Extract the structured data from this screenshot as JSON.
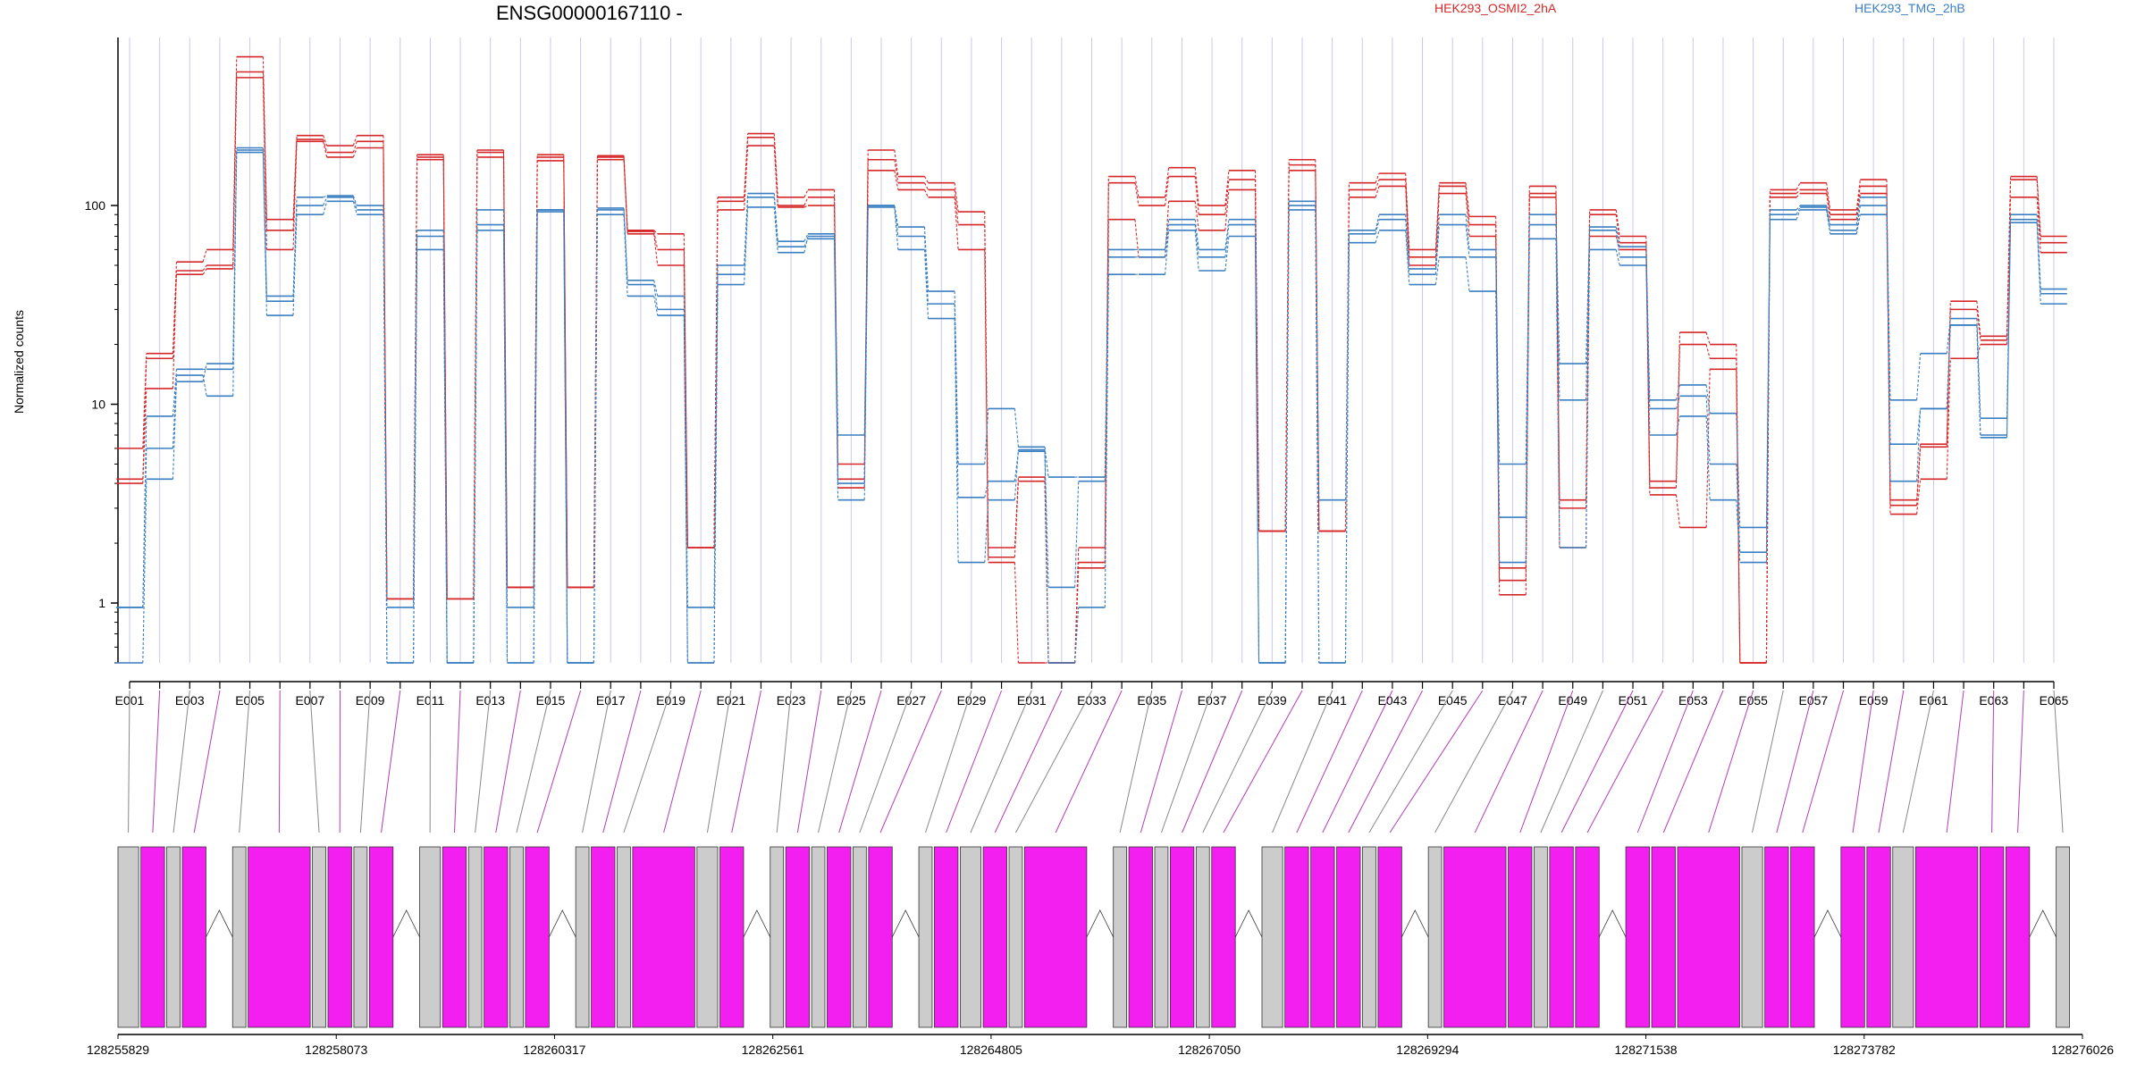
{
  "chart_data": {
    "type": "line",
    "title": "ENSG00000167110 -",
    "ylabel": "Normalized counts",
    "yscale": "log",
    "ylim": [
      0.5,
      700
    ],
    "yticks": [
      "1",
      "10",
      "100"
    ],
    "legend": [
      {
        "label": "HEK293_OSMI2_2hA",
        "color": "#d62728"
      },
      {
        "label": "HEK293_TMG_2hB",
        "color": "#3a7fc1"
      }
    ],
    "colors": {
      "red": "#d62728",
      "blue": "#3a7fc1",
      "grid": "#c8c8f0",
      "exon_gray": "#cccccc",
      "exon_magenta": "#f21ff0",
      "link_gray": "#888888",
      "link_magenta": "#b43cb4"
    },
    "exons": [
      "E001",
      "E002",
      "E003",
      "E004",
      "E005",
      "E006",
      "E007",
      "E008",
      "E009",
      "E010",
      "E011",
      "E012",
      "E013",
      "E014",
      "E015",
      "E016",
      "E017",
      "E018",
      "E019",
      "E020",
      "E021",
      "E022",
      "E023",
      "E024",
      "E025",
      "E026",
      "E027",
      "E028",
      "E029",
      "E030",
      "E031",
      "E032",
      "E033",
      "E034",
      "E035",
      "E036",
      "E037",
      "E038",
      "E039",
      "E040",
      "E041",
      "E042",
      "E043",
      "E044",
      "E045",
      "E046",
      "E047",
      "E048",
      "E049",
      "E050",
      "E051",
      "E052",
      "E053",
      "E054",
      "E055",
      "E056",
      "E057",
      "E058",
      "E059",
      "E060",
      "E061",
      "E062",
      "E063",
      "E064",
      "E065"
    ],
    "exon_labels_shown": [
      "E001",
      "E003",
      "E005",
      "E007",
      "E009",
      "E011",
      "E013",
      "E015",
      "E017",
      "E019",
      "E021",
      "E023",
      "E025",
      "E027",
      "E029",
      "E031",
      "E033",
      "E035",
      "E037",
      "E039",
      "E041",
      "E043",
      "E045",
      "E047",
      "E049",
      "E051",
      "E053",
      "E055",
      "E057",
      "E059",
      "E061",
      "E063",
      "E065"
    ],
    "series": [
      {
        "group": "HEK293_OSMI2_2hA",
        "values": [
          6,
          18,
          52,
          60,
          560,
          85,
          225,
          200,
          225,
          1.05,
          180,
          1.05,
          190,
          1.2,
          180,
          1.2,
          178,
          75,
          72,
          1.9,
          110,
          230,
          110,
          120,
          5,
          190,
          140,
          130,
          93,
          1.9,
          4.3,
          0.5,
          1.9,
          140,
          110,
          155,
          100,
          150,
          2.3,
          170,
          2.3,
          130,
          145,
          60,
          130,
          88,
          1.5,
          125,
          3.3,
          95,
          70,
          4.1,
          23,
          20,
          0.5,
          120,
          130,
          95,
          135,
          3.3,
          6.3,
          33,
          22,
          140,
          70
        ]
      },
      {
        "group": "HEK293_OSMI2_2hA",
        "values": [
          4,
          12,
          47,
          50,
          470,
          75,
          215,
          185,
          210,
          1.05,
          175,
          1.05,
          185,
          1.2,
          175,
          1.2,
          175,
          74,
          60,
          1.9,
          105,
          220,
          100,
          110,
          4.2,
          170,
          130,
          120,
          80,
          1.7,
          4.1,
          0.5,
          1.6,
          130,
          100,
          140,
          90,
          135,
          2.3,
          160,
          2.3,
          120,
          135,
          55,
          125,
          80,
          1.3,
          115,
          3,
          90,
          65,
          3.8,
          20,
          17,
          0.5,
          115,
          120,
          90,
          125,
          3.1,
          6.1,
          30,
          21,
          135,
          65
        ]
      },
      {
        "group": "HEK293_OSMI2_2hA",
        "values": [
          4.2,
          17,
          45,
          48,
          440,
          60,
          210,
          175,
          195,
          1.05,
          170,
          1.05,
          175,
          1.2,
          168,
          1.2,
          170,
          72,
          50,
          1.9,
          95,
          200,
          98,
          100,
          3.8,
          150,
          120,
          110,
          60,
          1.6,
          0.5,
          0.5,
          1.5,
          85,
          55,
          105,
          75,
          120,
          2.3,
          150,
          2.3,
          110,
          125,
          50,
          115,
          70,
          1.1,
          110,
          1.9,
          70,
          60,
          3.5,
          2.4,
          15,
          0.5,
          110,
          115,
          85,
          115,
          2.8,
          4.2,
          17,
          20,
          110,
          58
        ]
      },
      {
        "group": "HEK293_TMG_2hB",
        "values": [
          0.95,
          6,
          14,
          11,
          185,
          28,
          90,
          105,
          90,
          0.5,
          60,
          0.5,
          75,
          0.5,
          93,
          0.5,
          90,
          35,
          28,
          0.5,
          40,
          98,
          58,
          70,
          3.3,
          98,
          60,
          27,
          1.6,
          3.3,
          5.9,
          0.5,
          0.95,
          45,
          45,
          75,
          47,
          70,
          0.5,
          95,
          0.5,
          65,
          75,
          40,
          55,
          37,
          1.6,
          68,
          1.9,
          60,
          50,
          7,
          8.7,
          3.3,
          1.6,
          85,
          95,
          72,
          90,
          4.1,
          9.5,
          25,
          6.8,
          82,
          32
        ]
      },
      {
        "group": "HEK293_TMG_2hB",
        "values": [
          0.95,
          8.7,
          15,
          15,
          190,
          33,
          100,
          110,
          95,
          0.5,
          70,
          0.5,
          80,
          0.5,
          95,
          0.5,
          95,
          40,
          30,
          0.5,
          45,
          110,
          62,
          68,
          4,
          100,
          70,
          32,
          3.4,
          4.1,
          5.8,
          1.2,
          4.1,
          55,
          55,
          80,
          55,
          80,
          0.5,
          100,
          0.5,
          72,
          85,
          45,
          80,
          55,
          2.7,
          80,
          10.5,
          75,
          55,
          9.5,
          11,
          5,
          1.8,
          90,
          98,
          75,
          100,
          6.3,
          9.5,
          25,
          7,
          85,
          36
        ]
      },
      {
        "group": "HEK293_TMG_2hB",
        "values": [
          0.5,
          4.2,
          13,
          16,
          195,
          35,
          110,
          112,
          100,
          0.95,
          75,
          0.5,
          95,
          0.95,
          95,
          0.5,
          97,
          42,
          35,
          0.95,
          50,
          115,
          66,
          72,
          7,
          100,
          78,
          37,
          5,
          9.5,
          6.1,
          4.3,
          4.3,
          60,
          60,
          85,
          60,
          85,
          0.5,
          105,
          3.3,
          75,
          90,
          48,
          90,
          60,
          5,
          90,
          16,
          78,
          62,
          10.5,
          12.5,
          9,
          2.4,
          95,
          100,
          80,
          110,
          10.5,
          18,
          27,
          8.5,
          90,
          38
        ]
      }
    ]
  },
  "gene_model": {
    "coordinate_labels": [
      "128255829",
      "128258073",
      "128260317",
      "128262561",
      "128264805",
      "128267050",
      "128269294",
      "128271538",
      "128273782",
      "128276026"
    ],
    "exon_colors": [
      "gray",
      "magenta",
      "gray",
      "magenta",
      "gray",
      "magenta",
      "gray",
      "magenta",
      "gray",
      "magenta",
      "gray",
      "magenta",
      "gray",
      "magenta",
      "gray",
      "magenta",
      "gray",
      "magenta",
      "gray",
      "magenta",
      "gray",
      "magenta",
      "gray",
      "magenta",
      "gray",
      "magenta",
      "gray",
      "magenta",
      "gray",
      "magenta",
      "gray",
      "magenta",
      "gray",
      "magenta",
      "gray",
      "magenta",
      "gray",
      "magenta",
      "gray",
      "magenta",
      "gray",
      "magenta",
      "magenta",
      "magenta",
      "gray",
      "magenta",
      "gray",
      "magenta",
      "magenta",
      "gray",
      "magenta",
      "magenta",
      "magenta",
      "magenta",
      "magenta",
      "gray",
      "magenta",
      "magenta",
      "magenta",
      "magenta",
      "gray",
      "magenta",
      "magenta",
      "magenta",
      "gray"
    ]
  }
}
